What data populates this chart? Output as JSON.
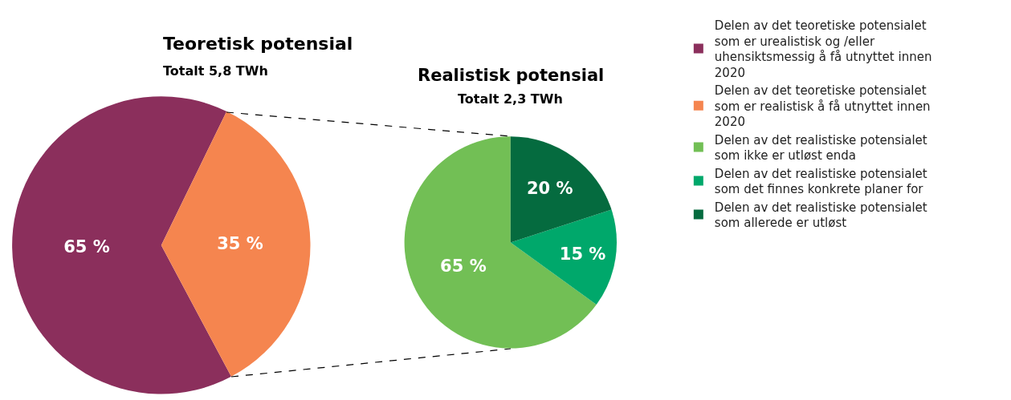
{
  "chart_data": [
    {
      "type": "pie",
      "title": "Teoretisk potensial",
      "subtitle": "Totalt 5,8 TWh",
      "categories": [
        "Delen av det teoretiske potensialet som er urealistisk og /eller uhensiktsmessig å få utnyttet innen 2020",
        "Delen av det teoretiske potensialet som er realistisk å få utnyttet innen 2020"
      ],
      "values": [
        65,
        35
      ],
      "colors": [
        "#8b2f5c",
        "#f5854f"
      ],
      "value_labels": [
        "65 %",
        "35 %"
      ],
      "legend": "right"
    },
    {
      "type": "pie",
      "title": "Realistisk potensial",
      "subtitle": "Totalt 2,3 TWh",
      "categories": [
        "Delen av det realistiske potensialet som ikke er utløst enda",
        "Delen av det realistiske potensialet som det finnes konkrete planer for",
        "Delen av det realistiske potensialet som allerede er utløst"
      ],
      "values": [
        65,
        15,
        20
      ],
      "colors": [
        "#72bf55",
        "#00a86b",
        "#056b3f"
      ],
      "value_labels": [
        "65 %",
        "15 %",
        "20 %"
      ],
      "legend": "right"
    }
  ]
}
